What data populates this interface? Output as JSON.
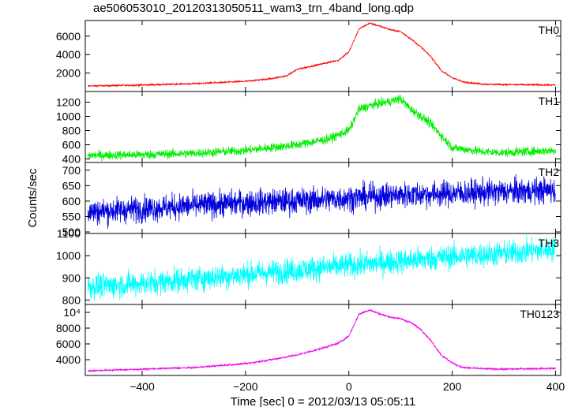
{
  "chart_data": {
    "type": "line",
    "title": "ae506053010_20120313050511_wam3_trn_4band_long.qdp",
    "xlabel": "Time [sec] 0 = 2012/03/13 05:05:11",
    "ylabel": "Counts/sec",
    "xlim": [
      -510,
      410
    ],
    "xticks": [
      -400,
      -200,
      0,
      200,
      400
    ],
    "panels": [
      {
        "name": "TH0",
        "color": "#ff0000",
        "ylim": [
          0,
          7700
        ],
        "yticks": [
          2000,
          4000,
          6000
        ],
        "ytick_labels": [
          "2000",
          "4000",
          "6000"
        ],
        "noise": 60,
        "x": [
          -500,
          -400,
          -300,
          -200,
          -150,
          -120,
          -100,
          -60,
          -20,
          0,
          20,
          40,
          60,
          80,
          100,
          120,
          140,
          160,
          180,
          200,
          220,
          260,
          300,
          400
        ],
        "y": [
          600,
          700,
          850,
          1100,
          1400,
          1700,
          2400,
          2900,
          3400,
          4300,
          6800,
          7400,
          7100,
          6700,
          6500,
          5700,
          4800,
          3700,
          2200,
          1500,
          1050,
          800,
          750,
          700
        ]
      },
      {
        "name": "TH1",
        "color": "#00ee00",
        "ylim": [
          350,
          1350
        ],
        "yticks": [
          400,
          600,
          800,
          1000,
          1200
        ],
        "ytick_labels": [
          "400",
          "600",
          "800",
          "1000",
          "1200"
        ],
        "noise": 45,
        "x": [
          -500,
          -400,
          -300,
          -200,
          -100,
          -40,
          0,
          20,
          40,
          60,
          80,
          100,
          120,
          140,
          160,
          180,
          200,
          260,
          300,
          400
        ],
        "y": [
          450,
          460,
          480,
          520,
          600,
          680,
          800,
          1100,
          1150,
          1180,
          1210,
          1250,
          1100,
          1000,
          880,
          720,
          560,
          500,
          490,
          520
        ]
      },
      {
        "name": "TH2",
        "color": "#0000dd",
        "ylim": [
          495,
          725
        ],
        "yticks": [
          500,
          550,
          600,
          650,
          700
        ],
        "ytick_labels": [
          "500",
          "550",
          "600",
          "650",
          "700"
        ],
        "noise": 30,
        "x": [
          -500,
          -400,
          -300,
          -200,
          -100,
          0,
          100,
          200,
          300,
          400
        ],
        "y": [
          565,
          575,
          585,
          595,
          600,
          610,
          620,
          625,
          630,
          635
        ]
      },
      {
        "name": "TH3",
        "color": "#00ffff",
        "ylim": [
          780,
          1100
        ],
        "yticks": [
          800,
          900,
          1000,
          1100
        ],
        "ytick_labels": [
          "800",
          "900",
          "1000",
          "1100"
        ],
        "noise": 40,
        "x": [
          -500,
          -400,
          -300,
          -200,
          -100,
          0,
          100,
          200,
          300,
          400
        ],
        "y": [
          860,
          875,
          895,
          915,
          935,
          955,
          975,
          995,
          1010,
          1030
        ]
      },
      {
        "name": "TH0123",
        "color": "#ee00ee",
        "ylim": [
          2000,
          11000
        ],
        "yticks": [
          4000,
          6000,
          8000,
          10000
        ],
        "ytick_labels": [
          "4000",
          "6000",
          "8000",
          "10⁴"
        ],
        "noise": 80,
        "x": [
          -500,
          -400,
          -300,
          -200,
          -150,
          -100,
          -60,
          -20,
          0,
          20,
          40,
          60,
          80,
          100,
          120,
          140,
          160,
          180,
          200,
          220,
          260,
          300,
          400
        ],
        "y": [
          2600,
          2800,
          3000,
          3500,
          4000,
          4600,
          5300,
          6100,
          7000,
          9800,
          10300,
          9800,
          9400,
          9200,
          8700,
          7800,
          6300,
          4500,
          3600,
          3000,
          2850,
          2800,
          2900
        ]
      }
    ]
  }
}
